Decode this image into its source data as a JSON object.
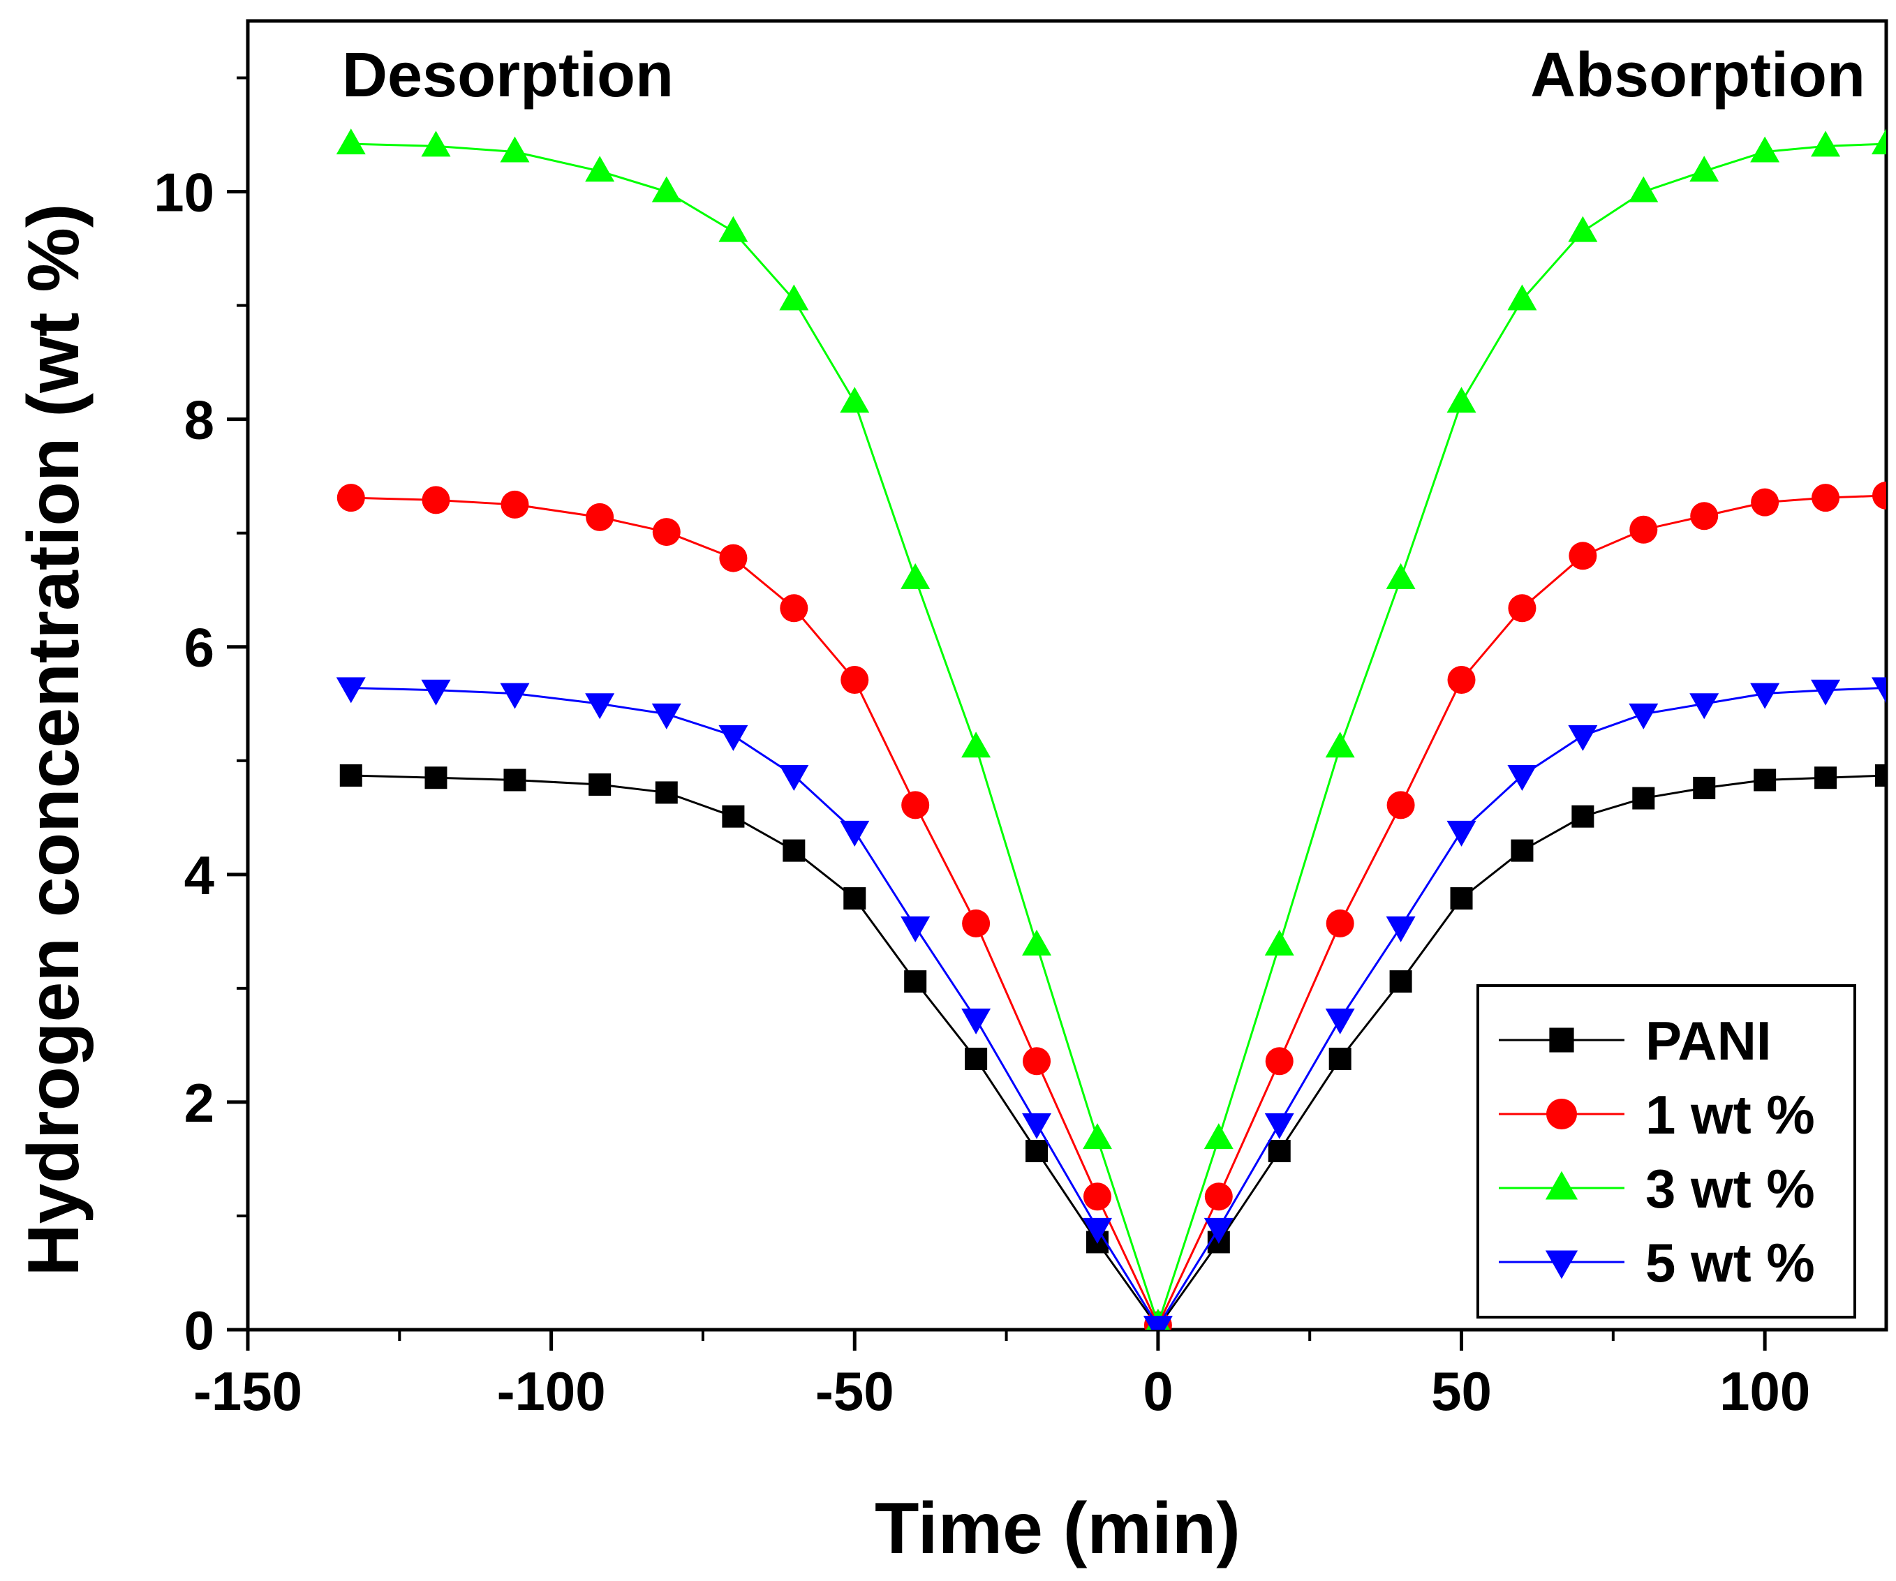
{
  "chart_data": {
    "type": "line",
    "title": "",
    "xlabel": "Time (min)",
    "ylabel": "Hydrogen concentration (wt %)",
    "xlim": [
      -150,
      120
    ],
    "ylim": [
      0,
      11.5
    ],
    "xticks": [
      -150,
      -100,
      -50,
      0,
      50,
      100
    ],
    "yticks": [
      0,
      2,
      4,
      6,
      8,
      10
    ],
    "xtick_labels": [
      "-150",
      "-100",
      "-50",
      "0",
      "50",
      "100"
    ],
    "ytick_labels": [
      "0",
      "2",
      "4",
      "6",
      "8",
      "10"
    ],
    "grid": false,
    "legend_position": "bottom-right",
    "annotations": [
      {
        "text": "Desorption",
        "position": "top-left"
      },
      {
        "text": "Absorption",
        "position": "top-right"
      }
    ],
    "x": [
      -133,
      -119,
      -106,
      -92,
      -81,
      -70,
      -60,
      -50,
      -40,
      -30,
      -20,
      -10,
      0,
      10,
      20,
      30,
      40,
      50,
      60,
      70,
      80,
      90,
      100,
      110,
      120
    ],
    "series": [
      {
        "name": "PANI",
        "color": "#000000",
        "marker": "square",
        "values": [
          4.87,
          4.85,
          4.83,
          4.79,
          4.72,
          4.51,
          4.21,
          3.79,
          3.06,
          2.38,
          1.57,
          0.77,
          0.02,
          0.77,
          1.57,
          2.38,
          3.06,
          3.79,
          4.21,
          4.51,
          4.67,
          4.76,
          4.83,
          4.85,
          4.87
        ]
      },
      {
        "name": "1 wt %",
        "color": "#ff0000",
        "marker": "circle",
        "values": [
          7.31,
          7.29,
          7.25,
          7.14,
          7.01,
          6.78,
          6.34,
          5.71,
          4.61,
          3.57,
          2.36,
          1.17,
          0.04,
          1.17,
          2.36,
          3.57,
          4.61,
          5.71,
          6.34,
          6.8,
          7.03,
          7.15,
          7.27,
          7.31,
          7.33
        ]
      },
      {
        "name": "3 wt %",
        "color": "#00ff00",
        "marker": "triangle-up",
        "values": [
          10.42,
          10.4,
          10.35,
          10.18,
          10.0,
          9.65,
          9.05,
          8.15,
          6.6,
          5.12,
          3.38,
          1.68,
          0.05,
          1.68,
          3.38,
          5.12,
          6.6,
          8.15,
          9.05,
          9.65,
          10.0,
          10.18,
          10.35,
          10.4,
          10.42
        ]
      },
      {
        "name": "5 wt %",
        "color": "#0000ff",
        "marker": "triangle-down",
        "values": [
          5.64,
          5.62,
          5.59,
          5.5,
          5.41,
          5.22,
          4.87,
          4.38,
          3.54,
          2.73,
          1.81,
          0.89,
          0.03,
          0.89,
          1.81,
          2.73,
          3.54,
          4.38,
          4.87,
          5.22,
          5.41,
          5.5,
          5.59,
          5.62,
          5.64
        ]
      }
    ]
  }
}
